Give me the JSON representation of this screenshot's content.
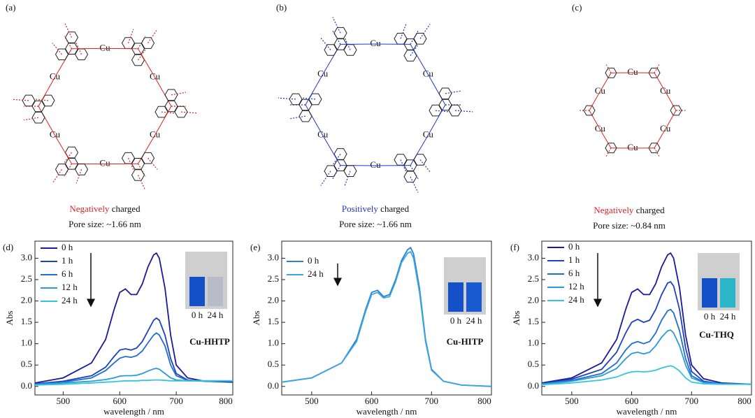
{
  "panels": [
    {
      "label": "(a)",
      "metal": "Cu",
      "charge_word": "Negatively",
      "charge_rest": " charged",
      "pore": "Pore size: ~1.66 nm"
    },
    {
      "label": "(b)",
      "metal": "Cu",
      "charge_word": "Positively",
      "charge_rest": " charged",
      "pore": "Pore size: ~1.66 nm"
    },
    {
      "label": "(c)",
      "metal": "Cu",
      "charge_word": "Negatively",
      "charge_rest": " charged",
      "pore": "Pore size: ~0.84 nm"
    }
  ],
  "chart_data": [
    {
      "type": "line",
      "panel_label": "(d)",
      "annotation": "Cu-HHTP",
      "inset_labels": [
        "0 h",
        "24 h"
      ],
      "xlabel": "wavelength / nm",
      "ylabel": "Abs",
      "xlim": [
        450,
        800
      ],
      "xticks": [
        500,
        600,
        700,
        800
      ],
      "ylim": [
        -0.2,
        3.4
      ],
      "yticks": [
        {
          "value": 0,
          "label": "0.0"
        },
        0.5,
        {
          "value": 1,
          "label": "1.0"
        },
        1.5,
        {
          "value": 2,
          "label": "2.0"
        },
        2.5,
        {
          "value": 3,
          "label": "3.0"
        }
      ],
      "x": [
        450,
        500,
        550,
        575,
        590,
        600,
        610,
        620,
        630,
        640,
        650,
        660,
        665,
        670,
        680,
        690,
        700,
        720,
        750,
        800
      ],
      "series": [
        {
          "name": "0 h",
          "color": "#1a1a9c",
          "values": [
            0.08,
            0.2,
            0.55,
            1.1,
            1.8,
            2.2,
            2.28,
            2.15,
            2.15,
            2.4,
            2.8,
            3.08,
            3.12,
            3.0,
            2.3,
            1.2,
            0.5,
            0.2,
            0.12,
            0.1
          ]
        },
        {
          "name": "1 h",
          "color": "#2040c0",
          "values": [
            0.06,
            0.12,
            0.25,
            0.45,
            0.7,
            0.85,
            0.88,
            0.85,
            0.9,
            1.05,
            1.3,
            1.55,
            1.6,
            1.55,
            1.2,
            0.65,
            0.3,
            0.15,
            0.12,
            0.12
          ]
        },
        {
          "name": "6 h",
          "color": "#1f6fd0",
          "values": [
            0.05,
            0.1,
            0.2,
            0.37,
            0.55,
            0.66,
            0.7,
            0.68,
            0.72,
            0.83,
            1.02,
            1.2,
            1.25,
            1.2,
            0.95,
            0.5,
            0.25,
            0.14,
            0.12,
            0.12
          ]
        },
        {
          "name": "12 h",
          "color": "#2a9ad8",
          "values": [
            0.04,
            0.08,
            0.12,
            0.16,
            0.2,
            0.24,
            0.25,
            0.25,
            0.26,
            0.3,
            0.36,
            0.41,
            0.42,
            0.4,
            0.3,
            0.2,
            0.15,
            0.13,
            0.13,
            0.13
          ]
        },
        {
          "name": "24 h",
          "color": "#33c4e0",
          "values": [
            0.03,
            0.05,
            0.08,
            0.1,
            0.11,
            0.12,
            0.13,
            0.13,
            0.13,
            0.14,
            0.14,
            0.15,
            0.15,
            0.15,
            0.14,
            0.13,
            0.13,
            0.13,
            0.13,
            0.13
          ]
        }
      ]
    },
    {
      "type": "line",
      "panel_label": "(e)",
      "annotation": "Cu-HITP",
      "inset_labels": [
        "0 h",
        "24 h"
      ],
      "xlabel": "wavelength / nm",
      "ylabel": "Abs",
      "xlim": [
        450,
        800
      ],
      "xticks": [
        500,
        600,
        700,
        800
      ],
      "ylim": [
        -0.2,
        3.4
      ],
      "yticks": [
        {
          "value": 0,
          "label": "0.0"
        },
        0.5,
        {
          "value": 1,
          "label": "1.0"
        },
        1.5,
        {
          "value": 2,
          "label": "2.0"
        },
        2.5,
        {
          "value": 3,
          "label": "3.0"
        }
      ],
      "x": [
        450,
        500,
        550,
        575,
        590,
        600,
        610,
        620,
        630,
        640,
        650,
        660,
        665,
        670,
        680,
        690,
        700,
        720,
        750,
        800
      ],
      "series": [
        {
          "name": "0 h",
          "color": "#2a7fd6",
          "values": [
            0.1,
            0.2,
            0.55,
            1.1,
            1.8,
            2.2,
            2.25,
            2.1,
            2.15,
            2.5,
            2.95,
            3.2,
            3.25,
            3.1,
            2.3,
            1.1,
            0.4,
            0.12,
            0.03,
            0.0
          ]
        },
        {
          "name": "24 h",
          "color": "#3aa6e0",
          "values": [
            0.1,
            0.2,
            0.55,
            1.05,
            1.75,
            2.15,
            2.2,
            2.07,
            2.1,
            2.45,
            2.9,
            3.12,
            3.15,
            3.0,
            2.2,
            1.05,
            0.38,
            0.12,
            0.03,
            0.0
          ]
        }
      ]
    },
    {
      "type": "line",
      "panel_label": "(f)",
      "annotation": "Cu-THQ",
      "inset_labels": [
        "0 h",
        "24 h"
      ],
      "xlabel": "wavelength / nm",
      "ylabel": "Abs",
      "xlim": [
        450,
        800
      ],
      "xticks": [
        500,
        600,
        700,
        800
      ],
      "ylim": [
        -0.2,
        3.4
      ],
      "yticks": [
        {
          "value": 0,
          "label": "0.0"
        },
        0.5,
        {
          "value": 1,
          "label": "1.0"
        },
        1.5,
        {
          "value": 2,
          "label": "2.0"
        },
        2.5,
        {
          "value": 3,
          "label": "3.0"
        }
      ],
      "x": [
        450,
        500,
        550,
        575,
        590,
        600,
        610,
        620,
        630,
        640,
        650,
        660,
        665,
        670,
        680,
        690,
        700,
        720,
        750,
        800
      ],
      "series": [
        {
          "name": "0 h",
          "color": "#1a1a9c",
          "values": [
            0.08,
            0.2,
            0.55,
            1.1,
            1.8,
            2.2,
            2.28,
            2.15,
            2.15,
            2.4,
            2.8,
            3.08,
            3.12,
            3.0,
            2.3,
            1.2,
            0.5,
            0.18,
            0.08,
            0.05
          ]
        },
        {
          "name": "1 h",
          "color": "#2040c0",
          "values": [
            0.06,
            0.17,
            0.4,
            0.8,
            1.25,
            1.5,
            1.57,
            1.5,
            1.55,
            1.8,
            2.15,
            2.42,
            2.45,
            2.35,
            1.8,
            0.9,
            0.35,
            0.12,
            0.06,
            0.05
          ]
        },
        {
          "name": "6 h",
          "color": "#1f6fd0",
          "values": [
            0.06,
            0.14,
            0.3,
            0.55,
            0.85,
            1.0,
            1.05,
            1.0,
            1.05,
            1.25,
            1.55,
            1.77,
            1.8,
            1.72,
            1.3,
            0.65,
            0.25,
            0.1,
            0.06,
            0.05
          ]
        },
        {
          "name": "12 h",
          "color": "#2a9ad8",
          "values": [
            0.05,
            0.12,
            0.25,
            0.42,
            0.65,
            0.77,
            0.8,
            0.76,
            0.8,
            0.95,
            1.15,
            1.3,
            1.32,
            1.25,
            0.95,
            0.5,
            0.2,
            0.09,
            0.06,
            0.05
          ]
        },
        {
          "name": "24 h",
          "color": "#33c4e0",
          "values": [
            0.04,
            0.08,
            0.15,
            0.22,
            0.3,
            0.34,
            0.35,
            0.34,
            0.35,
            0.38,
            0.43,
            0.47,
            0.48,
            0.46,
            0.36,
            0.2,
            0.1,
            0.06,
            0.05,
            0.05
          ]
        }
      ]
    }
  ]
}
